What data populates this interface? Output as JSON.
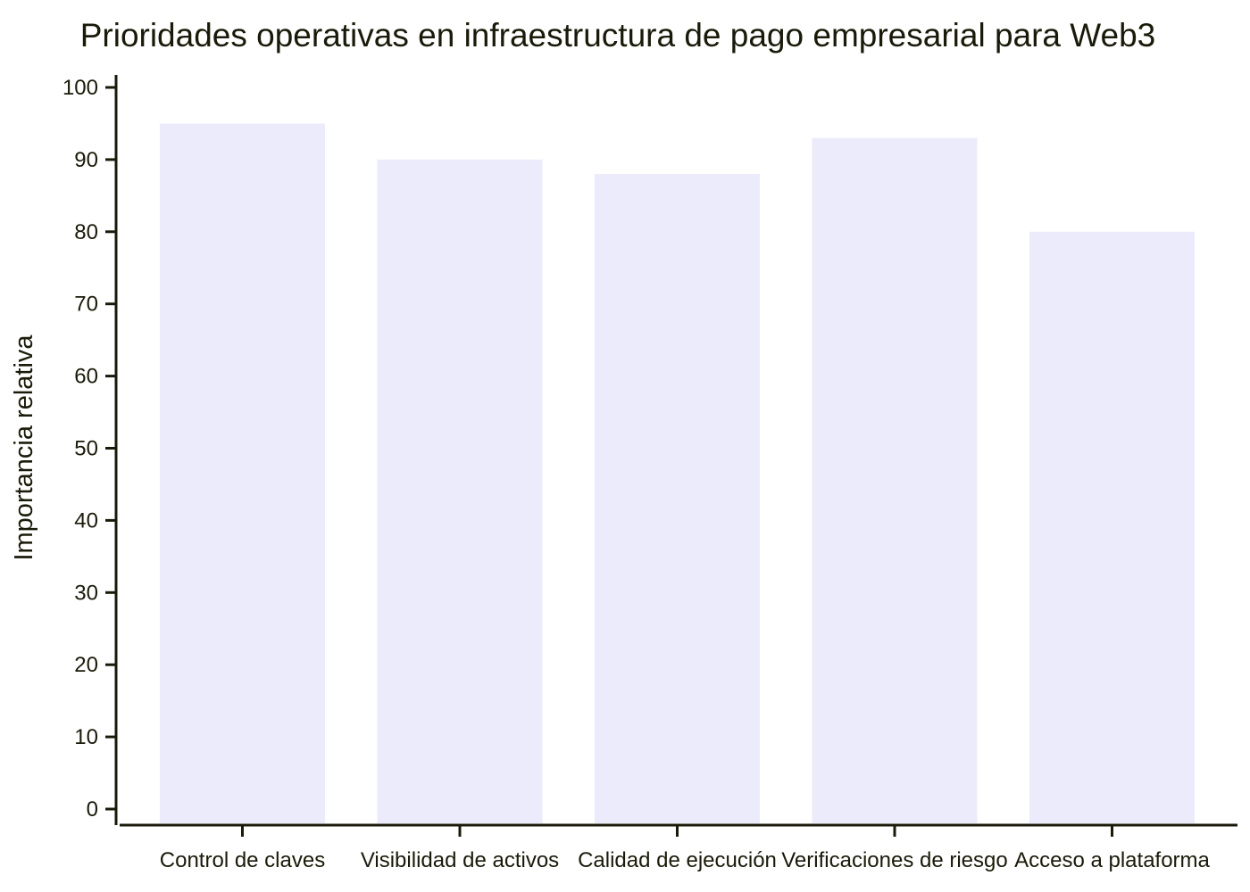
{
  "chart_data": {
    "type": "bar",
    "title": "Prioridades operativas en infraestructura de pago empresarial para Web3",
    "xlabel": "",
    "ylabel": "Importancia relativa",
    "categories": [
      "Control de claves",
      "Visibilidad de activos",
      "Calidad de ejecución",
      "Verificaciones de riesgo",
      "Acceso a plataforma"
    ],
    "values": [
      95,
      90,
      88,
      93,
      80
    ],
    "ylim": [
      0,
      100
    ],
    "yticks": [
      0,
      10,
      20,
      30,
      40,
      50,
      60,
      70,
      80,
      90,
      100
    ],
    "grid": false,
    "legend": "none",
    "bar_color": "#ebebfc",
    "axis_color": "#1a1a0a"
  }
}
